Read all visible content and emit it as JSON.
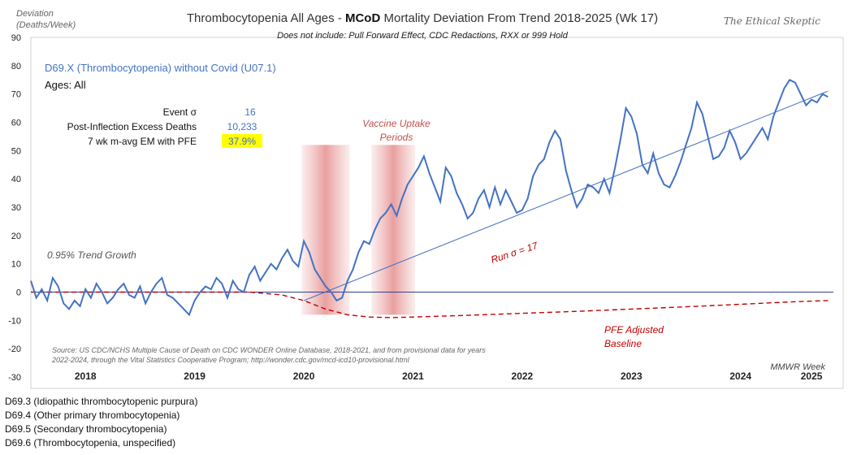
{
  "chart_data": {
    "type": "line",
    "title_pre": "Thrombocytopenia  All Ages - ",
    "title_bold": "MCoD",
    "title_post": " Mortality Deviation From Trend  2018-2025 (Wk 17)",
    "subtitle": "Does not include: Pull Forward Effect,  CDC Redactions, RXX or 999 Hold",
    "brand": "The Ethical Skeptic",
    "ylabel_line1": "Deviation",
    "ylabel_line2": "(Deaths/Week)",
    "xlabel": "MMWR Week",
    "ylim": [
      -30,
      90
    ],
    "yticks": [
      "-30",
      "-20",
      "-10",
      "0",
      "10",
      "20",
      "30",
      "40",
      "50",
      "60",
      "70",
      "80",
      "90"
    ],
    "years": [
      "2018",
      "2019",
      "2020",
      "2021",
      "2022",
      "2023",
      "2024",
      "2025"
    ],
    "year_positions": [
      2018.5,
      2019.5,
      2020.5,
      2021.5,
      2022.5,
      2023.5,
      2024.5,
      2025.15
    ],
    "xlim": [
      2018.0,
      2025.35
    ],
    "grid": false,
    "series": [
      {
        "name": "D69.X (Thrombocytopenia) without Covid (U07.1)",
        "color": "#4472c4",
        "x": [
          2018.0,
          2018.05,
          2018.1,
          2018.15,
          2018.2,
          2018.25,
          2018.3,
          2018.35,
          2018.4,
          2018.45,
          2018.5,
          2018.55,
          2018.6,
          2018.65,
          2018.7,
          2018.75,
          2018.8,
          2018.85,
          2018.9,
          2018.95,
          2019.0,
          2019.05,
          2019.1,
          2019.15,
          2019.2,
          2019.25,
          2019.3,
          2019.35,
          2019.4,
          2019.45,
          2019.5,
          2019.55,
          2019.6,
          2019.65,
          2019.7,
          2019.75,
          2019.8,
          2019.85,
          2019.9,
          2019.95,
          2020.0,
          2020.05,
          2020.1,
          2020.15,
          2020.2,
          2020.25,
          2020.3,
          2020.35,
          2020.4,
          2020.45,
          2020.5,
          2020.55,
          2020.6,
          2020.65,
          2020.7,
          2020.75,
          2020.8,
          2020.85,
          2020.9,
          2020.95,
          2021.0,
          2021.05,
          2021.1,
          2021.15,
          2021.2,
          2021.25,
          2021.3,
          2021.35,
          2021.4,
          2021.45,
          2021.5,
          2021.55,
          2021.6,
          2021.65,
          2021.7,
          2021.75,
          2021.8,
          2021.85,
          2021.9,
          2021.95,
          2022.0,
          2022.05,
          2022.1,
          2022.15,
          2022.2,
          2022.25,
          2022.3,
          2022.35,
          2022.4,
          2022.45,
          2022.5,
          2022.55,
          2022.6,
          2022.65,
          2022.7,
          2022.75,
          2022.8,
          2022.85,
          2022.9,
          2022.95,
          2023.0,
          2023.05,
          2023.1,
          2023.15,
          2023.2,
          2023.25,
          2023.3,
          2023.35,
          2023.4,
          2023.45,
          2023.5,
          2023.55,
          2023.6,
          2023.65,
          2023.7,
          2023.75,
          2023.8,
          2023.85,
          2023.9,
          2023.95,
          2024.0,
          2024.05,
          2024.1,
          2024.15,
          2024.2,
          2024.25,
          2024.3,
          2024.35,
          2024.4,
          2024.45,
          2024.5,
          2024.55,
          2024.6,
          2024.65,
          2024.7,
          2024.75,
          2024.8,
          2024.85,
          2024.9,
          2024.95,
          2025.0,
          2025.05,
          2025.1,
          2025.15,
          2025.2,
          2025.25,
          2025.3
        ],
        "y": [
          4,
          -2,
          1,
          -3,
          5,
          2,
          -4,
          -6,
          -3,
          -5,
          1,
          -2,
          3,
          0,
          -4,
          -2,
          1,
          3,
          -1,
          -2,
          2,
          -4,
          0,
          3,
          5,
          -1,
          -2,
          -4,
          -6,
          -8,
          -3,
          0,
          2,
          1,
          5,
          3,
          -2,
          4,
          1,
          0,
          6,
          9,
          4,
          7,
          10,
          8,
          12,
          15,
          11,
          9,
          18,
          14,
          8,
          5,
          2,
          0,
          -3,
          -2,
          4,
          8,
          14,
          18,
          17,
          22,
          26,
          28,
          31,
          27,
          33,
          38,
          41,
          44,
          48,
          42,
          37,
          32,
          44,
          41,
          35,
          31,
          26,
          28,
          33,
          36,
          30,
          37,
          31,
          36,
          32,
          28,
          29,
          33,
          41,
          45,
          47,
          53,
          57,
          54,
          43,
          36,
          30,
          33,
          38,
          37,
          35,
          40,
          35,
          44,
          54,
          65,
          62,
          56,
          45,
          42,
          49,
          42,
          38,
          37,
          41,
          46,
          52,
          58,
          67,
          63,
          55,
          47,
          48,
          51,
          57,
          53,
          47,
          49,
          52,
          55,
          58,
          54,
          62,
          67,
          72,
          75,
          74,
          70,
          66,
          68,
          67,
          70,
          69
        ]
      }
    ],
    "trend_line": {
      "label": "Run σ = 17",
      "x": [
        2020.5,
        2025.3
      ],
      "y": [
        -3,
        71
      ],
      "color": "#4472c4"
    },
    "pfe_baseline": {
      "label_line1": "PFE Adjusted",
      "label_line2": "Baseline",
      "color": "#c00000",
      "x": [
        2018.0,
        2019.5,
        2020.0,
        2020.3,
        2020.5,
        2020.7,
        2020.9,
        2021.1,
        2021.3,
        2021.6,
        2022.0,
        2022.5,
        2023.0,
        2023.5,
        2024.0,
        2024.5,
        2025.0,
        2025.3
      ],
      "y": [
        0,
        0,
        0,
        -1,
        -3,
        -6,
        -8,
        -8.8,
        -9,
        -8.7,
        -8.2,
        -7.5,
        -6.8,
        -6,
        -5.2,
        -4.3,
        -3.4,
        -3
      ]
    },
    "vaccine_periods": {
      "label_line1": "Vaccine Uptake",
      "label_line2": "Periods",
      "ranges": [
        [
          2020.48,
          2020.92
        ],
        [
          2021.12,
          2021.52
        ]
      ]
    },
    "annotations": {
      "series_label": "D69.X (Thrombocytopenia) without Covid (U07.1)",
      "ages": "Ages: All",
      "trend_growth": "0.95% Trend Growth",
      "stats": [
        {
          "label": "Event σ",
          "value": "16",
          "highlight": false
        },
        {
          "label": "Post-Inflection Excess Deaths",
          "value": "10,233",
          "highlight": false
        },
        {
          "label": "7 wk m-avg EM with PFE",
          "value": "37.9%",
          "highlight": true
        }
      ],
      "source_line1": "Source: US CDC/NCHS Multiple Cause of Death on CDC WONDER Online Database, 2018-2021, and from provisional data for years",
      "source_line2": "2022-2024, through the Vital Statistics Cooperative Program; http://wonder.cdc.gov/mcd-icd10-provisional.html"
    },
    "colors": {
      "series": "#4472c4",
      "baseline": "#c00000",
      "highlight": "#ffff00",
      "band": "#e07070"
    }
  },
  "footnotes": [
    "D69.3 (Idiopathic thrombocytopenic purpura)",
    "D69.4 (Other primary thrombocytopenia)",
    "D69.5 (Secondary thrombocytopenia)",
    "D69.6 (Thrombocytopenia,  unspecified)"
  ]
}
